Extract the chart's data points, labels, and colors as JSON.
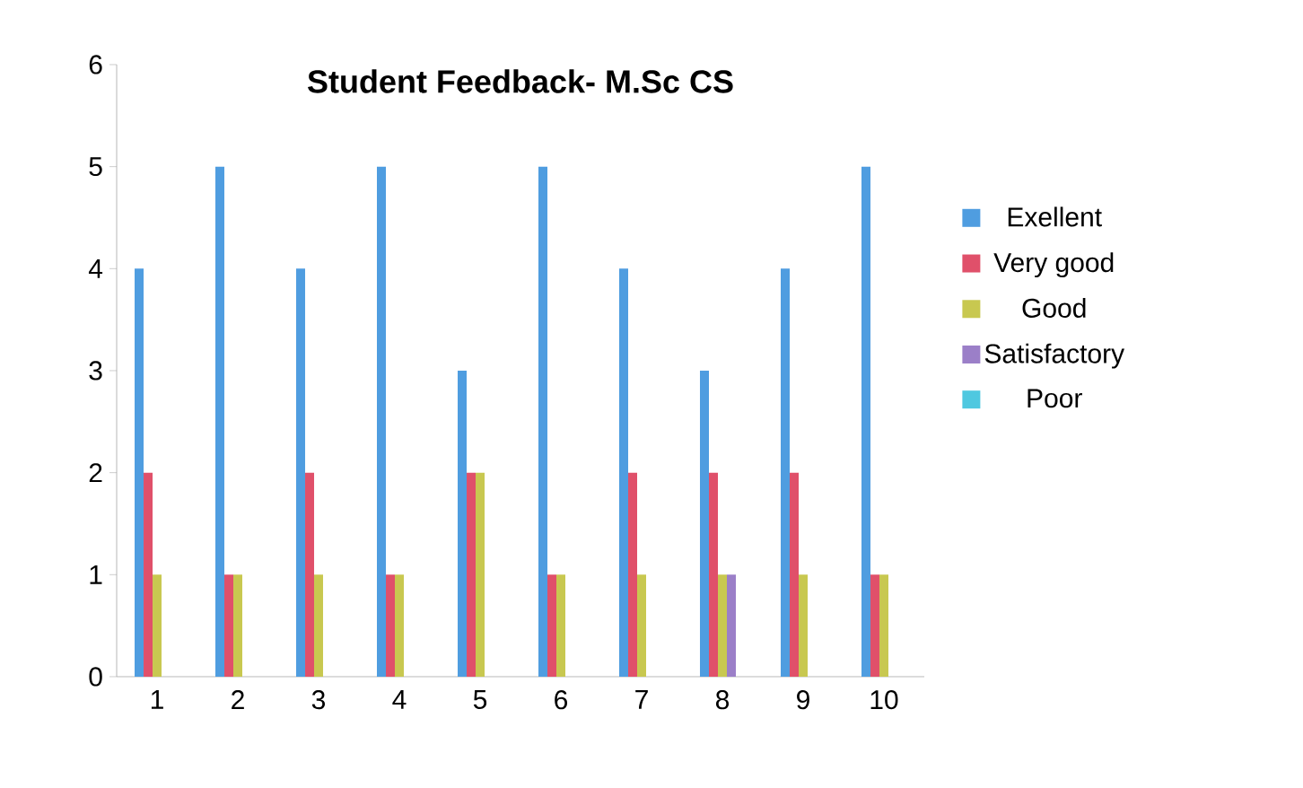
{
  "chart_data": {
    "type": "bar",
    "title": "Student Feedback- M.Sc CS",
    "categories": [
      "1",
      "2",
      "3",
      "4",
      "5",
      "6",
      "7",
      "8",
      "9",
      "10"
    ],
    "series": [
      {
        "name": "Exellent",
        "color": "#4f9de0",
        "values": [
          4,
          5,
          4,
          5,
          3,
          5,
          4,
          3,
          4,
          5
        ]
      },
      {
        "name": "Very good",
        "color": "#e0506a",
        "values": [
          2,
          1,
          2,
          1,
          2,
          1,
          2,
          2,
          2,
          1
        ]
      },
      {
        "name": "Good",
        "color": "#c8c850",
        "values": [
          1,
          1,
          1,
          1,
          2,
          1,
          1,
          1,
          1,
          1
        ]
      },
      {
        "name": "Satisfactory",
        "color": "#9b7fc8",
        "values": [
          0,
          0,
          0,
          0,
          0,
          0,
          0,
          1,
          0,
          0
        ]
      },
      {
        "name": "Poor",
        "color": "#4fc8e0",
        "values": [
          0,
          0,
          0,
          0,
          0,
          0,
          0,
          0,
          0,
          0
        ]
      }
    ],
    "ylim": [
      0,
      6
    ],
    "yticks": [
      0,
      1,
      2,
      3,
      4,
      5,
      6
    ],
    "grid": false,
    "legend": "right"
  }
}
